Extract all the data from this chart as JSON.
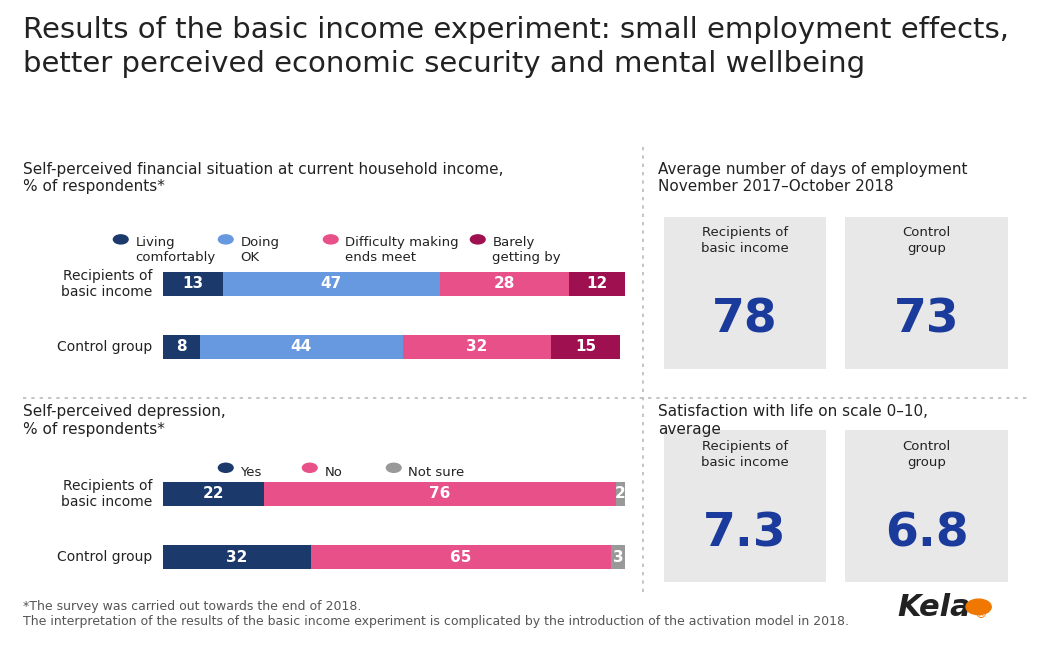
{
  "title": "Results of the basic income experiment: small employment effects,\nbetter perceived economic security and mental wellbeing",
  "title_fontsize": 21,
  "title_color": "#222222",
  "title_fontweight": "normal",
  "financial_section_title": "Self-perceived financial situation at current household income,\n% of respondents*",
  "financial_legend": [
    "Living\ncomfortably",
    "Doing\nOK",
    "Difficulty making\nends meet",
    "Barely\ngetting by"
  ],
  "financial_colors": [
    "#1b3a6b",
    "#6699e0",
    "#e8508a",
    "#9e1050"
  ],
  "financial_rows": [
    "Recipients of\nbasic income",
    "Control group"
  ],
  "financial_data": [
    [
      13,
      47,
      28,
      12
    ],
    [
      8,
      44,
      32,
      15
    ]
  ],
  "employment_section_title": "Average number of days of employment\nNovember 2017–October 2018",
  "employment_labels": [
    "Recipients of\nbasic income",
    "Control\ngroup"
  ],
  "employment_values": [
    "78",
    "73"
  ],
  "employment_value_color": "#1a3a9c",
  "box_color": "#e8e8e8",
  "depression_section_title": "Self-perceived depression,\n% of respondents*",
  "depression_legend": [
    "Yes",
    "No",
    "Not sure"
  ],
  "depression_colors": [
    "#1b3a6b",
    "#e8508a",
    "#999999"
  ],
  "depression_rows": [
    "Recipients of\nbasic income",
    "Control group"
  ],
  "depression_data": [
    [
      22,
      76,
      2
    ],
    [
      32,
      65,
      3
    ]
  ],
  "satisfaction_section_title": "Satisfaction with life on scale 0–10,\naverage",
  "satisfaction_labels": [
    "Recipients of\nbasic income",
    "Control\ngroup"
  ],
  "satisfaction_values": [
    "7.3",
    "6.8"
  ],
  "satisfaction_value_color": "#1a3a9c",
  "footnote1": "*The survey was carried out towards the end of 2018.",
  "footnote2": "The interpretation of the results of the basic income experiment is complicated by the introduction of the activation model in 2018.",
  "footnote_color": "#555555",
  "footnote_fontsize": 9,
  "kela_text": "Kela",
  "bg_color": "#ffffff",
  "divider_color": "#bbbbbb",
  "section_title_fontsize": 11,
  "legend_fontsize": 9.5,
  "bar_label_fontsize": 11,
  "row_label_fontsize": 10
}
